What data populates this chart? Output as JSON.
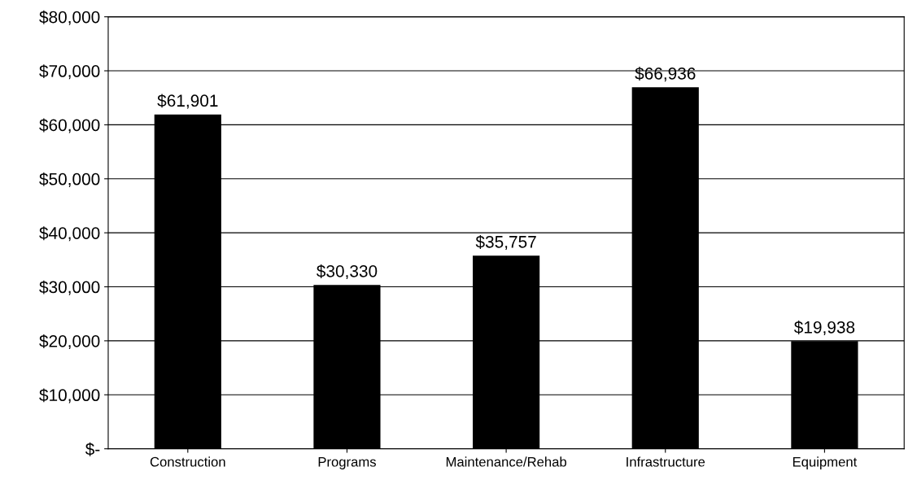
{
  "chart_data": {
    "type": "bar",
    "categories": [
      "Construction",
      "Programs",
      "Maintenance/Rehab",
      "Infrastructure",
      "Equipment"
    ],
    "values": [
      61901,
      30330,
      35757,
      66936,
      19938
    ],
    "color": "#000000",
    "value_labels": [
      "$61,901",
      "$30,330",
      "$35,757",
      "$66,936",
      "$19,938"
    ],
    "ylim": [
      0,
      80000
    ],
    "yticks": [
      {
        "value": 0,
        "label": "$-"
      },
      {
        "value": 10000,
        "label": "$10,000"
      },
      {
        "value": 20000,
        "label": "$20,000"
      },
      {
        "value": 30000,
        "label": "$30,000"
      },
      {
        "value": 40000,
        "label": "$40,000"
      },
      {
        "value": 50000,
        "label": "$50,000"
      },
      {
        "value": 60000,
        "label": "$60,000"
      },
      {
        "value": 70000,
        "label": "$70,000"
      },
      {
        "value": 80000,
        "label": "$80,000"
      }
    ],
    "grid": "y"
  }
}
